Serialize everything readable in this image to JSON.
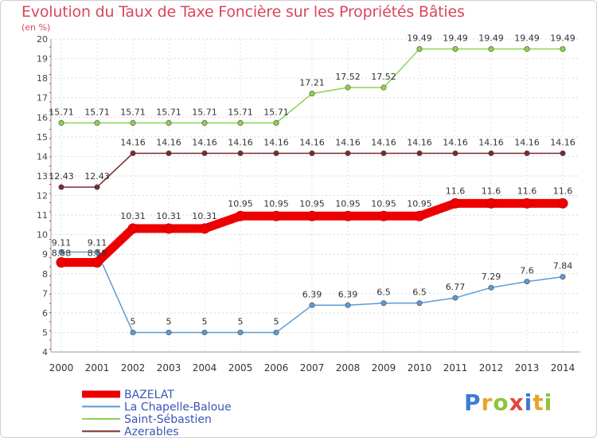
{
  "chart_data": {
    "type": "line",
    "title": "Evolution du Taux de Taxe Foncière sur les Propriétés Bâties",
    "ylabel": "(en %)",
    "xlabel": "",
    "ylim": [
      4,
      20
    ],
    "yticks": [
      "4",
      "5",
      "6",
      "7",
      "8",
      "9",
      "10",
      "11",
      "12",
      "13",
      "14",
      "15",
      "16",
      "17",
      "18",
      "19",
      "20"
    ],
    "x": [
      "2000",
      "2001",
      "2002",
      "2003",
      "2004",
      "2005",
      "2006",
      "2007",
      "2008",
      "2009",
      "2010",
      "2011",
      "2012",
      "2013",
      "2014"
    ],
    "series": [
      {
        "name": "BAZELAT",
        "color": "#ee0000",
        "values": [
          8.58,
          8.58,
          10.31,
          10.31,
          10.31,
          10.95,
          10.95,
          10.95,
          10.95,
          10.95,
          10.95,
          11.6,
          11.6,
          11.6,
          11.6
        ],
        "labels": [
          "8.58",
          "8.58",
          "10.31",
          "10.31",
          "10.31",
          "10.95",
          "10.95",
          "10.95",
          "10.95",
          "10.95",
          "10.95",
          "11.6",
          "11.6",
          "11.6",
          "11.6"
        ]
      },
      {
        "name": "La Chapelle-Baloue",
        "color": "#5b9bd5",
        "values": [
          9.11,
          9.11,
          5,
          5,
          5,
          5,
          5,
          6.39,
          6.39,
          6.5,
          6.5,
          6.77,
          7.29,
          7.6,
          7.84
        ],
        "labels": [
          "9.11",
          "9.11",
          "5",
          "5",
          "5",
          "5",
          "5",
          "6.39",
          "6.39",
          "6.5",
          "6.5",
          "6.77",
          "7.29",
          "7.6",
          "7.84"
        ]
      },
      {
        "name": "Saint-Sébastien",
        "color": "#8dd44a",
        "values": [
          15.71,
          15.71,
          15.71,
          15.71,
          15.71,
          15.71,
          15.71,
          17.21,
          17.52,
          17.52,
          19.49,
          19.49,
          19.49,
          19.49,
          19.49
        ],
        "labels": [
          "15.71",
          "15.71",
          "15.71",
          "15.71",
          "15.71",
          "15.71",
          "15.71",
          "17.21",
          "17.52",
          "17.52",
          "19.49",
          "19.49",
          "19.49",
          "19.49",
          "19.49"
        ]
      },
      {
        "name": "Azerables",
        "color": "#7a2a30",
        "values": [
          12.43,
          12.43,
          14.16,
          14.16,
          14.16,
          14.16,
          14.16,
          14.16,
          14.16,
          14.16,
          14.16,
          14.16,
          14.16,
          14.16,
          14.16
        ],
        "labels": [
          "12.43",
          "12.43",
          "14.16",
          "14.16",
          "14.16",
          "14.16",
          "14.16",
          "14.16",
          "14.16",
          "14.16",
          "14.16",
          "14.16",
          "14.16",
          "14.16",
          "14.16"
        ]
      }
    ]
  },
  "branding": {
    "logo_parts": [
      "P",
      "r",
      "o",
      "x",
      "i",
      "t",
      "i"
    ]
  }
}
